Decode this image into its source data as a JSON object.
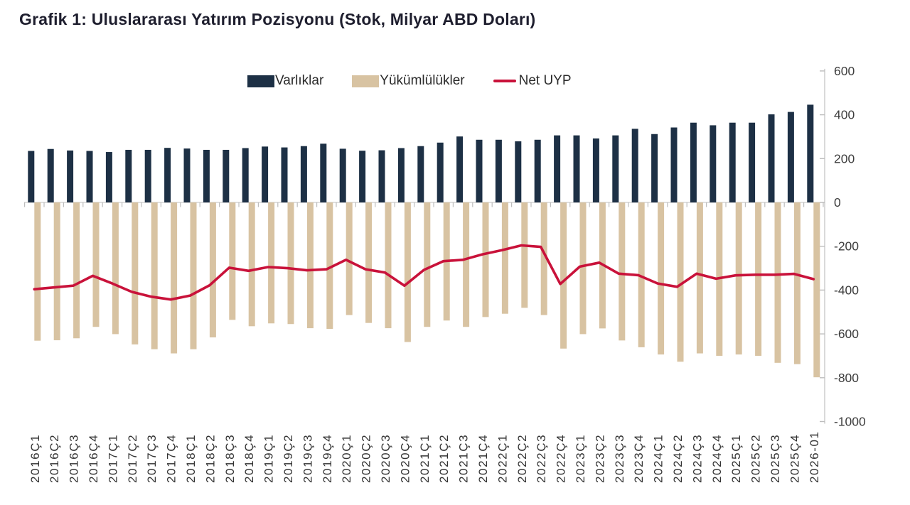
{
  "title": "Grafik 1: Uluslararası Yatırım Pozisyonu (Stok, Milyar ABD Doları)",
  "legend": [
    {
      "label": "Varlıklar",
      "color": "#1d3045",
      "marker": "rect"
    },
    {
      "label": "Yükümlülükler",
      "color": "#d8c3a2",
      "marker": "rect"
    },
    {
      "label": "Net UYP",
      "color": "#c9123a",
      "marker": "line"
    }
  ],
  "colors": {
    "assets_bar": "#1d3045",
    "liabilities_bar": "#d8c3a2",
    "net_line": "#c9123a",
    "axis_line": "#c9c9c9",
    "tick_mark": "#bdbdbd",
    "zero_line": "#cccccc",
    "axis_text": "#3d3d3d",
    "x_label_text": "#333333"
  },
  "chart_data": {
    "type": "bar",
    "subtype": "bar-line-combo",
    "title": "Grafik 1: Uluslararası Yatırım Pozisyonu (Stok, Milyar ABD Doları)",
    "categories": [
      "2016Ç1",
      "2016Ç2",
      "2016Ç3",
      "2016Ç4",
      "2017Ç1",
      "2017Ç2",
      "2017Ç3",
      "2017Ç4",
      "2018Ç1",
      "2018Ç2",
      "2018Ç3",
      "2018Ç4",
      "2019Ç1",
      "2019Ç2",
      "2019Ç3",
      "2019Ç4",
      "2020Ç1",
      "2020Ç2",
      "2020Ç3",
      "2020Ç4",
      "2021Ç1",
      "2021Ç2",
      "2021Ç3",
      "2021Ç4",
      "2022Ç1",
      "2022Ç2",
      "2022Ç3",
      "2022Ç4",
      "2023Ç1",
      "2023Ç2",
      "2023Ç3",
      "2023Ç4",
      "2024Ç1",
      "2024Ç2",
      "2024Ç3",
      "2024Ç4",
      "2025Ç1",
      "2025Ç2",
      "2025Ç3",
      "2025Ç4",
      "2026-01"
    ],
    "series": [
      {
        "name": "Varlıklar",
        "type": "bar",
        "color": "#1d3045",
        "values": [
          235,
          244,
          237,
          235,
          230,
          240,
          240,
          249,
          246,
          240,
          240,
          248,
          255,
          251,
          257,
          268,
          245,
          236,
          238,
          248,
          257,
          273,
          301,
          286,
          286,
          279,
          286,
          306,
          306,
          292,
          306,
          336,
          312,
          342,
          364,
          352,
          364,
          364,
          402,
          413,
          446
        ]
      },
      {
        "name": "Yükümlülükler",
        "type": "bar",
        "color": "#d8c3a2",
        "values": [
          -631,
          -629,
          -620,
          -568,
          -601,
          -648,
          -670,
          -689,
          -670,
          -616,
          -536,
          -565,
          -552,
          -555,
          -574,
          -577,
          -514,
          -550,
          -574,
          -637,
          -568,
          -539,
          -568,
          -523,
          -508,
          -481,
          -514,
          -667,
          -601,
          -575,
          -630,
          -661,
          -694,
          -727,
          -689,
          -700,
          -694,
          -700,
          -732,
          -738,
          -798
        ]
      },
      {
        "name": "Net UYP",
        "type": "line",
        "color": "#c9123a",
        "values": [
          -396,
          -388,
          -380,
          -335,
          -370,
          -408,
          -430,
          -443,
          -425,
          -378,
          -298,
          -312,
          -295,
          -300,
          -310,
          -305,
          -262,
          -305,
          -320,
          -380,
          -308,
          -268,
          -262,
          -237,
          -218,
          -196,
          -203,
          -372,
          -293,
          -275,
          -325,
          -332,
          -370,
          -385,
          -325,
          -348,
          -333,
          -330,
          -330,
          -326,
          -350
        ]
      }
    ],
    "xlabel": "",
    "ylabel": "",
    "ylim": [
      -1000,
      600
    ],
    "yticks": [
      600,
      400,
      200,
      0,
      -200,
      -400,
      -600,
      -800,
      -1000
    ],
    "y_axis_side": "right",
    "grid": "zero-line-only",
    "legend_position": "top"
  }
}
